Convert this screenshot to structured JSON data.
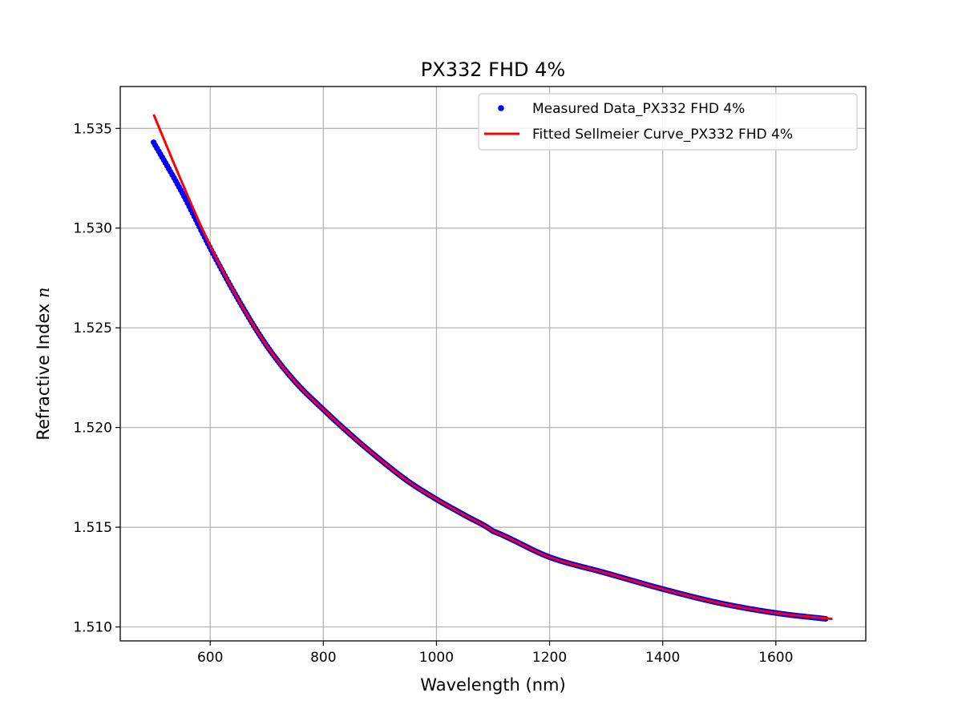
{
  "chart_data": {
    "type": "line",
    "title": "PX332 FHD 4%",
    "xlabel": "Wavelength (nm)",
    "ylabel_prefix": "Refractive Index ",
    "ylabel_symbol": "n",
    "xlim": [
      441,
      1759
    ],
    "ylim": [
      1.5093,
      1.5371
    ],
    "xticks": [
      600,
      800,
      1000,
      1200,
      1400,
      1600
    ],
    "xtick_labels": [
      "600",
      "800",
      "1000",
      "1200",
      "1400",
      "1600"
    ],
    "yticks": [
      1.51,
      1.515,
      1.52,
      1.525,
      1.53,
      1.535
    ],
    "ytick_labels": [
      "1.510",
      "1.515",
      "1.520",
      "1.525",
      "1.530",
      "1.535"
    ],
    "grid": true,
    "legend_position": "top-right",
    "series": [
      {
        "name": "Measured Data_PX332 FHD 4%",
        "style": "points",
        "color": "#0000ff",
        "x_range": [
          500,
          1690
        ],
        "x_step": 3,
        "x": [
          500,
          550,
          600,
          650,
          700,
          750,
          800,
          850,
          900,
          950,
          1000,
          1050,
          1100,
          1200,
          1300,
          1400,
          1500,
          1600,
          1690
        ],
        "y": [
          1.5343,
          1.5318,
          1.529,
          1.5264,
          1.5241,
          1.5223,
          1.5209,
          1.5196,
          1.5184,
          1.5173,
          1.5164,
          1.5156,
          1.5148,
          1.5135,
          1.5127,
          1.5119,
          1.5112,
          1.5107,
          1.5104
        ]
      },
      {
        "name": "Fitted Sellmeier Curve_PX332 FHD 4%",
        "style": "line",
        "color": "#ff0000",
        "x": [
          500,
          550,
          600,
          650,
          700,
          750,
          800,
          850,
          900,
          950,
          1000,
          1050,
          1100,
          1200,
          1300,
          1400,
          1500,
          1600,
          1700
        ],
        "y": [
          1.5357,
          1.5323,
          1.5291,
          1.5264,
          1.5241,
          1.5223,
          1.5209,
          1.5196,
          1.5184,
          1.5173,
          1.5164,
          1.5156,
          1.5148,
          1.5135,
          1.5127,
          1.5119,
          1.5112,
          1.5107,
          1.5104
        ]
      }
    ]
  }
}
